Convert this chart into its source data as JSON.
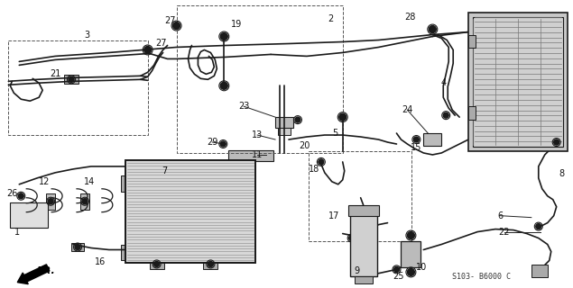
{
  "bg_color": "#ffffff",
  "line_color": "#1a1a1a",
  "diagram_code": "S103- B6000 C",
  "fig_w": 6.35,
  "fig_h": 3.2,
  "dpi": 100
}
